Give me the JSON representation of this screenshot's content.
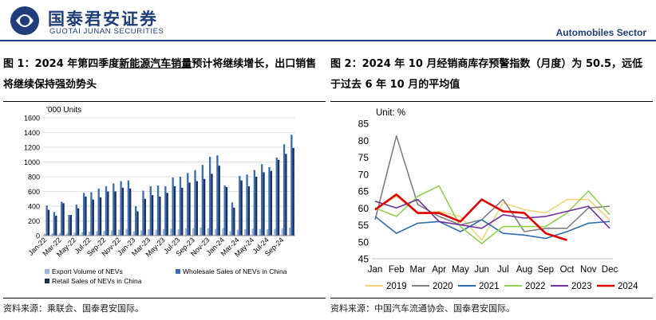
{
  "header": {
    "logo_cn": "国泰君安证券",
    "logo_en": "GUOTAI JUNAN SECURITIES",
    "sector": "Automobiles Sector"
  },
  "figure1": {
    "title_part1": "图 1：2024 年第四季度",
    "title_part2": "新能源汽车销量",
    "title_part3": "预计将继续增长，出口销售将继续保持强劲势头",
    "source": "资料来源：乘联会、国泰君安国际。"
  },
  "figure2": {
    "title": "图 2：2024 年 10 月经销商库存预警指数（月度）为 50.5，远低于过去 6 年 10 月的平均值",
    "source": "资料来源：中国汽车流通协会、国泰君安国际。"
  },
  "colors": {
    "brand": "#1f3d7a",
    "export": "#9db3d9",
    "wholesale": "#3b6db2",
    "retail": "#1c2e5a",
    "y2019": "#f3d27a",
    "y2020": "#808080",
    "y2021": "#2e6db0",
    "y2022": "#92d050",
    "y2023": "#7030a0",
    "y2024": "#e00000"
  },
  "chart_data": [
    {
      "type": "bar",
      "title": "",
      "ylabel": "'000 Units",
      "ylim": [
        0,
        1600
      ],
      "yticks": [
        0,
        200,
        400,
        600,
        800,
        1000,
        1200,
        1400,
        1600
      ],
      "categories": [
        "Jan-22",
        "Feb-22",
        "Mar-22",
        "Apr-22",
        "May-22",
        "Jun-22",
        "Jul-22",
        "Aug-22",
        "Sep-22",
        "Oct-22",
        "Nov-22",
        "Dec-22",
        "Jan-23",
        "Feb-23",
        "Mar-23",
        "Apr-23",
        "May-23",
        "Jun-23",
        "Jul-23",
        "Aug-23",
        "Sep-23",
        "Oct-23",
        "Nov-23",
        "Dec-23",
        "Jan-24",
        "Feb-24",
        "Mar-24",
        "Apr-24",
        "May-24",
        "Jun-24",
        "Jul-24",
        "Aug-24",
        "Sep-24",
        "Oct-24"
      ],
      "tick_labels": [
        "Jan-22",
        "Mar-22",
        "May-22",
        "Jul-22",
        "Sep-22",
        "Nov-22",
        "Jan-23",
        "Mar-23",
        "May-23",
        "Jul-23",
        "Sep-23",
        "Nov-23",
        "Jan-24",
        "Mar-24",
        "May-24",
        "Jul-24",
        "Sep-24"
      ],
      "series": [
        {
          "name": "Export Volume of NEVs",
          "values": [
            25,
            30,
            35,
            30,
            40,
            45,
            55,
            60,
            65,
            70,
            80,
            90,
            60,
            70,
            85,
            80,
            90,
            95,
            85,
            100,
            100,
            110,
            100,
            90,
            100,
            60,
            80,
            85,
            95,
            90,
            85,
            90,
            100,
            110
          ]
        },
        {
          "name": "Wholesale Sales of NEVs in China",
          "values": [
            410,
            320,
            460,
            280,
            420,
            580,
            590,
            640,
            670,
            710,
            740,
            750,
            400,
            610,
            670,
            680,
            670,
            790,
            800,
            850,
            890,
            960,
            1070,
            1090,
            680,
            450,
            810,
            830,
            890,
            970,
            930,
            1060,
            1240,
            1370
          ]
        },
        {
          "name": "Retail Sales of NEVs in China",
          "values": [
            350,
            270,
            440,
            280,
            370,
            530,
            490,
            520,
            600,
            600,
            650,
            640,
            330,
            500,
            550,
            530,
            580,
            670,
            650,
            720,
            740,
            770,
            840,
            950,
            660,
            380,
            750,
            670,
            800,
            860,
            880,
            1030,
            1110,
            1190
          ]
        }
      ],
      "legend": [
        "Export Volume of NEVs",
        "Wholesale Sales of NEVs in China",
        "Retail Sales of NEVs in China"
      ],
      "legend_position": "bottom"
    },
    {
      "type": "line",
      "ylabel": "Unit: %",
      "ylim": [
        45,
        85
      ],
      "yticks": [
        45,
        50,
        55,
        60,
        65,
        70,
        75,
        80,
        85
      ],
      "categories": [
        "Jan",
        "Feb",
        "Mar",
        "Apr",
        "May",
        "Jun",
        "Jul",
        "Aug",
        "Sep",
        "Oct",
        "Nov",
        "Dec"
      ],
      "series": [
        {
          "name": "2019",
          "values": [
            59.5,
            63.5,
            58.5,
            59.0,
            57.5,
            50.5,
            61.5,
            59.5,
            58.5,
            62.5,
            62.5,
            56.5
          ]
        },
        {
          "name": "2020",
          "values": [
            56.5,
            81.3,
            61.0,
            57.5,
            55.0,
            56.5,
            62.5,
            53.0,
            54.0,
            54.0,
            60.0,
            60.5
          ]
        },
        {
          "name": "2021",
          "values": [
            57.5,
            52.5,
            55.5,
            56.0,
            53.0,
            56.5,
            52.5,
            52.0,
            51.0,
            53.0,
            55.5,
            56.0
          ]
        },
        {
          "name": "2022",
          "values": [
            60.0,
            57.5,
            63.5,
            66.5,
            54.5,
            49.5,
            54.5,
            54.5,
            54.5,
            58.5,
            65.0,
            58.0
          ]
        },
        {
          "name": "2023",
          "values": [
            62.0,
            60.0,
            62.5,
            56.0,
            55.0,
            54.0,
            58.0,
            57.0,
            57.5,
            59.0,
            60.5,
            54.0
          ]
        },
        {
          "name": "2024",
          "values": [
            59.5,
            64.0,
            58.5,
            58.5,
            56.0,
            62.5,
            59.0,
            58.5,
            52.5,
            50.5,
            null,
            null
          ]
        }
      ],
      "legend": [
        "2019",
        "2020",
        "2021",
        "2022",
        "2023",
        "2024"
      ],
      "legend_position": "bottom"
    }
  ]
}
